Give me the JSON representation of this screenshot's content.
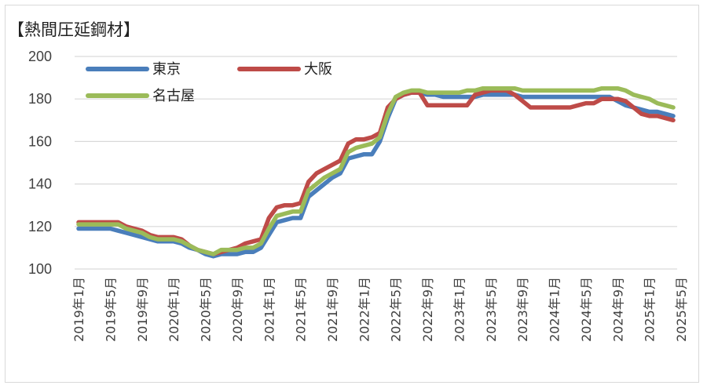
{
  "title": "【熱間圧延鋼材】",
  "chart_data": {
    "type": "line",
    "title": "【熱間圧延鋼材】",
    "xlabel": "",
    "ylabel": "",
    "ylim": [
      100,
      200
    ],
    "yticks": [
      100,
      120,
      140,
      160,
      180,
      200
    ],
    "grid": "horizontal",
    "legend": "top-left",
    "x_tick_labels": [
      "2019年1月",
      "2019年5月",
      "2019年9月",
      "2020年1月",
      "2020年5月",
      "2020年9月",
      "2021年1月",
      "2021年5月",
      "2021年9月",
      "2022年1月",
      "2022年5月",
      "2022年9月",
      "2023年1月",
      "2023年5月",
      "2023年9月",
      "2024年1月",
      "2024年5月",
      "2024年9月",
      "2025年1月",
      "2025年5月"
    ],
    "series": [
      {
        "name": "東京",
        "color": "#4a7ebb",
        "values": [
          119,
          119,
          119,
          119,
          119,
          118,
          117,
          116,
          115,
          114,
          113,
          113,
          113,
          112,
          110,
          109,
          107,
          106,
          107,
          107,
          107,
          108,
          108,
          110,
          116,
          122,
          123,
          124,
          124,
          134,
          137,
          140,
          143,
          145,
          152,
          153,
          154,
          154,
          160,
          171,
          180,
          182,
          183,
          183,
          182,
          182,
          181,
          181,
          181,
          181,
          181,
          182,
          182,
          182,
          182,
          182,
          181,
          181,
          181,
          181,
          181,
          181,
          181,
          181,
          181,
          181,
          181,
          181,
          179,
          177,
          176,
          175,
          174,
          174,
          173,
          172
        ]
      },
      {
        "name": "大阪",
        "color": "#be4b48",
        "values": [
          122,
          122,
          122,
          122,
          122,
          122,
          120,
          119,
          118,
          116,
          115,
          115,
          115,
          114,
          111,
          109,
          108,
          107,
          108,
          109,
          110,
          112,
          113,
          114,
          124,
          129,
          130,
          130,
          131,
          141,
          145,
          147,
          149,
          151,
          159,
          161,
          161,
          162,
          164,
          176,
          180,
          182,
          183,
          183,
          177,
          177,
          177,
          177,
          177,
          177,
          182,
          183,
          184,
          184,
          184,
          182,
          179,
          176,
          176,
          176,
          176,
          176,
          176,
          177,
          178,
          178,
          180,
          180,
          180,
          179,
          176,
          173,
          172,
          172,
          171,
          170
        ]
      },
      {
        "name": "名古屋",
        "color": "#9bbb59",
        "values": [
          121,
          121,
          121,
          121,
          121,
          121,
          119,
          118,
          117,
          115,
          114,
          114,
          114,
          113,
          111,
          109,
          108,
          107,
          109,
          109,
          109,
          110,
          110,
          112,
          119,
          125,
          126,
          127,
          127,
          137,
          140,
          143,
          145,
          147,
          155,
          157,
          158,
          159,
          162,
          173,
          181,
          183,
          184,
          184,
          183,
          183,
          183,
          183,
          183,
          184,
          184,
          185,
          185,
          185,
          185,
          185,
          184,
          184,
          184,
          184,
          184,
          184,
          184,
          184,
          184,
          184,
          185,
          185,
          185,
          184,
          182,
          181,
          180,
          178,
          177,
          176
        ]
      }
    ]
  }
}
